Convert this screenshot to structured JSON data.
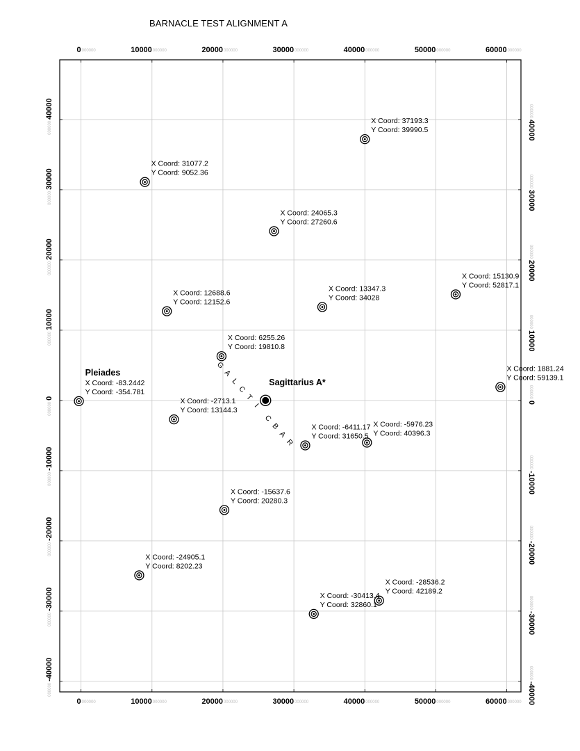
{
  "title": "BARNACLE TEST ALIGNMENT A",
  "axes": {
    "x_ticks": [
      {
        "value": 0,
        "label": "0",
        "frac": "000000"
      },
      {
        "value": 10000,
        "label": "10000",
        "frac": "000000"
      },
      {
        "value": 20000,
        "label": "20000",
        "frac": "000000"
      },
      {
        "value": 30000,
        "label": "30000",
        "frac": "000000"
      },
      {
        "value": 40000,
        "label": "40000",
        "frac": "000000"
      },
      {
        "value": 50000,
        "label": "50000",
        "frac": "000000"
      },
      {
        "value": 60000,
        "label": "60000",
        "frac": "000000"
      }
    ],
    "y_ticks": [
      {
        "value": 40000,
        "label": "40000",
        "frac": "000000"
      },
      {
        "value": 30000,
        "label": "30000",
        "frac": "000000"
      },
      {
        "value": 20000,
        "label": "20000",
        "frac": "000000"
      },
      {
        "value": 10000,
        "label": "10000",
        "frac": "000000"
      },
      {
        "value": 0,
        "label": "0",
        "frac": "000000"
      },
      {
        "value": -10000,
        "label": "-10000",
        "frac": "000000"
      },
      {
        "value": -20000,
        "label": "-20000",
        "frac": "000000"
      },
      {
        "value": -30000,
        "label": "-30000",
        "frac": "000000"
      },
      {
        "value": -40000,
        "label": "-40000",
        "frac": "000000"
      }
    ],
    "x_range": [
      -3000,
      62000
    ],
    "y_range": [
      -41500,
      48500
    ],
    "grid": true
  },
  "points": [
    {
      "x": 40000,
      "y": 37200,
      "xc": "X Coord: 37193.3",
      "yc": "Y Coord: 39990.5"
    },
    {
      "x": 9000,
      "y": 31100,
      "xc": "X Coord: 31077.2",
      "yc": "Y Coord: 9052.36"
    },
    {
      "x": 27200,
      "y": 24100,
      "xc": "X Coord: 24065.3",
      "yc": "Y Coord: 27260.6"
    },
    {
      "x": 52800,
      "y": 15100,
      "xc": "X Coord: 15130.9",
      "yc": "Y Coord: 52817.1"
    },
    {
      "x": 12100,
      "y": 12700,
      "xc": "X Coord: 12688.6",
      "yc": "Y Coord: 12152.6"
    },
    {
      "x": 34000,
      "y": 13300,
      "xc": "X Coord: 13347.3",
      "yc": "Y Coord: 34028"
    },
    {
      "x": 19800,
      "y": 6300,
      "xc": "X Coord: 6255.26",
      "yc": "Y Coord: 19810.8"
    },
    {
      "x": 59100,
      "y": 1900,
      "xc": "X Coord: 1881.24",
      "yc": "Y Coord: 59139.1"
    },
    {
      "x": -300,
      "y": -100,
      "name": "Pleiades",
      "xc": "X Coord: -83.2442",
      "yc": "Y Coord: -354.781"
    },
    {
      "x": 13100,
      "y": -2700,
      "xc": "X Coord: -2713.1",
      "yc": "Y Coord: 13144.3"
    },
    {
      "x": 31600,
      "y": -6400,
      "xc": "X Coord: -6411.17",
      "yc": "Y Coord: 31650.5"
    },
    {
      "x": 40300,
      "y": -6000,
      "xc": "X Coord: -5976.23",
      "yc": "Y Coord: 40396.3"
    },
    {
      "x": 20200,
      "y": -15600,
      "xc": "X Coord: -15637.6",
      "yc": "Y Coord: 20280.3"
    },
    {
      "x": 8200,
      "y": -24900,
      "xc": "X Coord: -24905.1",
      "yc": "Y Coord: 8202.23"
    },
    {
      "x": 42000,
      "y": -28500,
      "xc": "X Coord: -28536.2",
      "yc": "Y Coord: 42189.2"
    },
    {
      "x": 32800,
      "y": -30400,
      "xc": "X Coord: -30413.4",
      "yc": "Y Coord: 32860.1"
    }
  ],
  "center": {
    "x": 26000,
    "y": 0,
    "name": "Sagittarius A*"
  },
  "galactic_bar": {
    "text": "GALCTIC BAR",
    "from": {
      "x": 19400,
      "y": 4800
    },
    "to": {
      "x": 29200,
      "y": -6200
    }
  }
}
